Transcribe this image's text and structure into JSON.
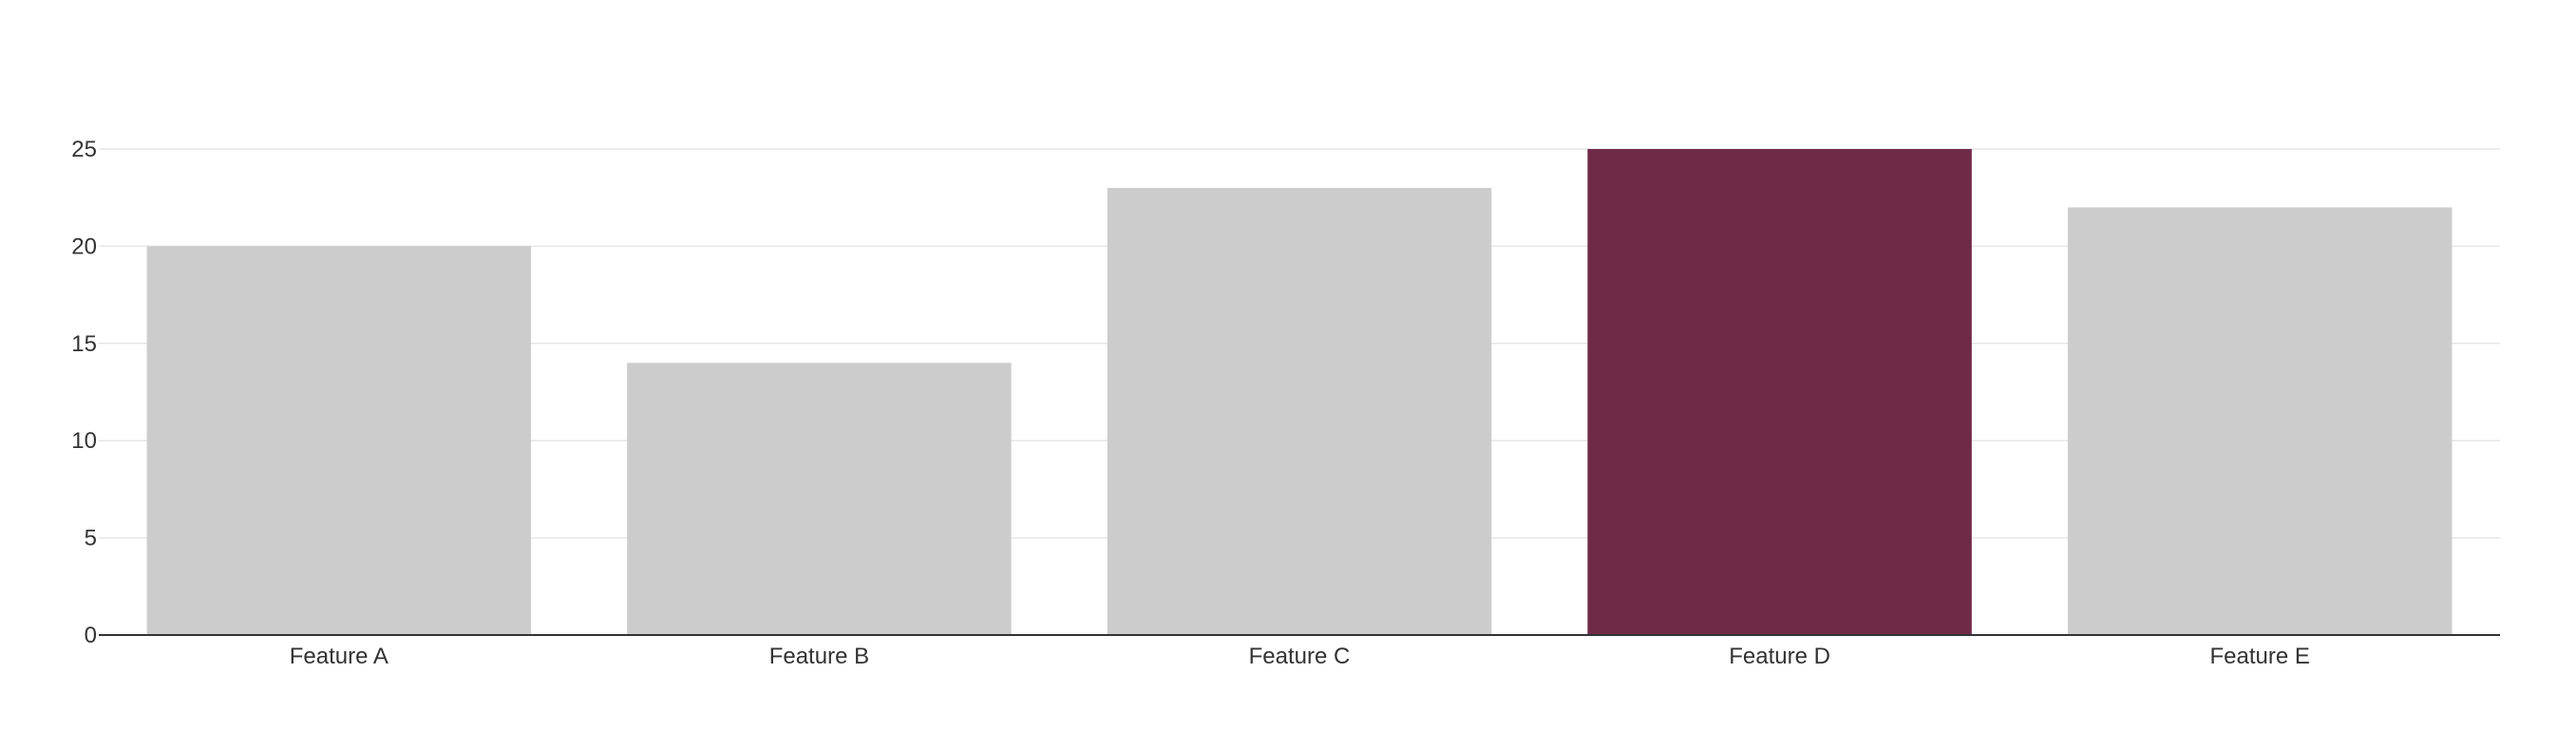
{
  "chart_data": {
    "type": "bar",
    "title": "",
    "xlabel": "",
    "ylabel": "",
    "categories": [
      "Feature A",
      "Feature B",
      "Feature C",
      "Feature D",
      "Feature E"
    ],
    "values": [
      20,
      14,
      23,
      25,
      22
    ],
    "ylim": [
      0,
      25
    ],
    "yticks": [
      0,
      5,
      10,
      15,
      20,
      25
    ],
    "grid": true,
    "highlight_category": "Feature D",
    "colors": {
      "default_bar": "#cccccc",
      "highlight_bar": "#6f2a48",
      "grid": "#e6e6e6",
      "axis": "#333333",
      "text": "#333333"
    }
  }
}
